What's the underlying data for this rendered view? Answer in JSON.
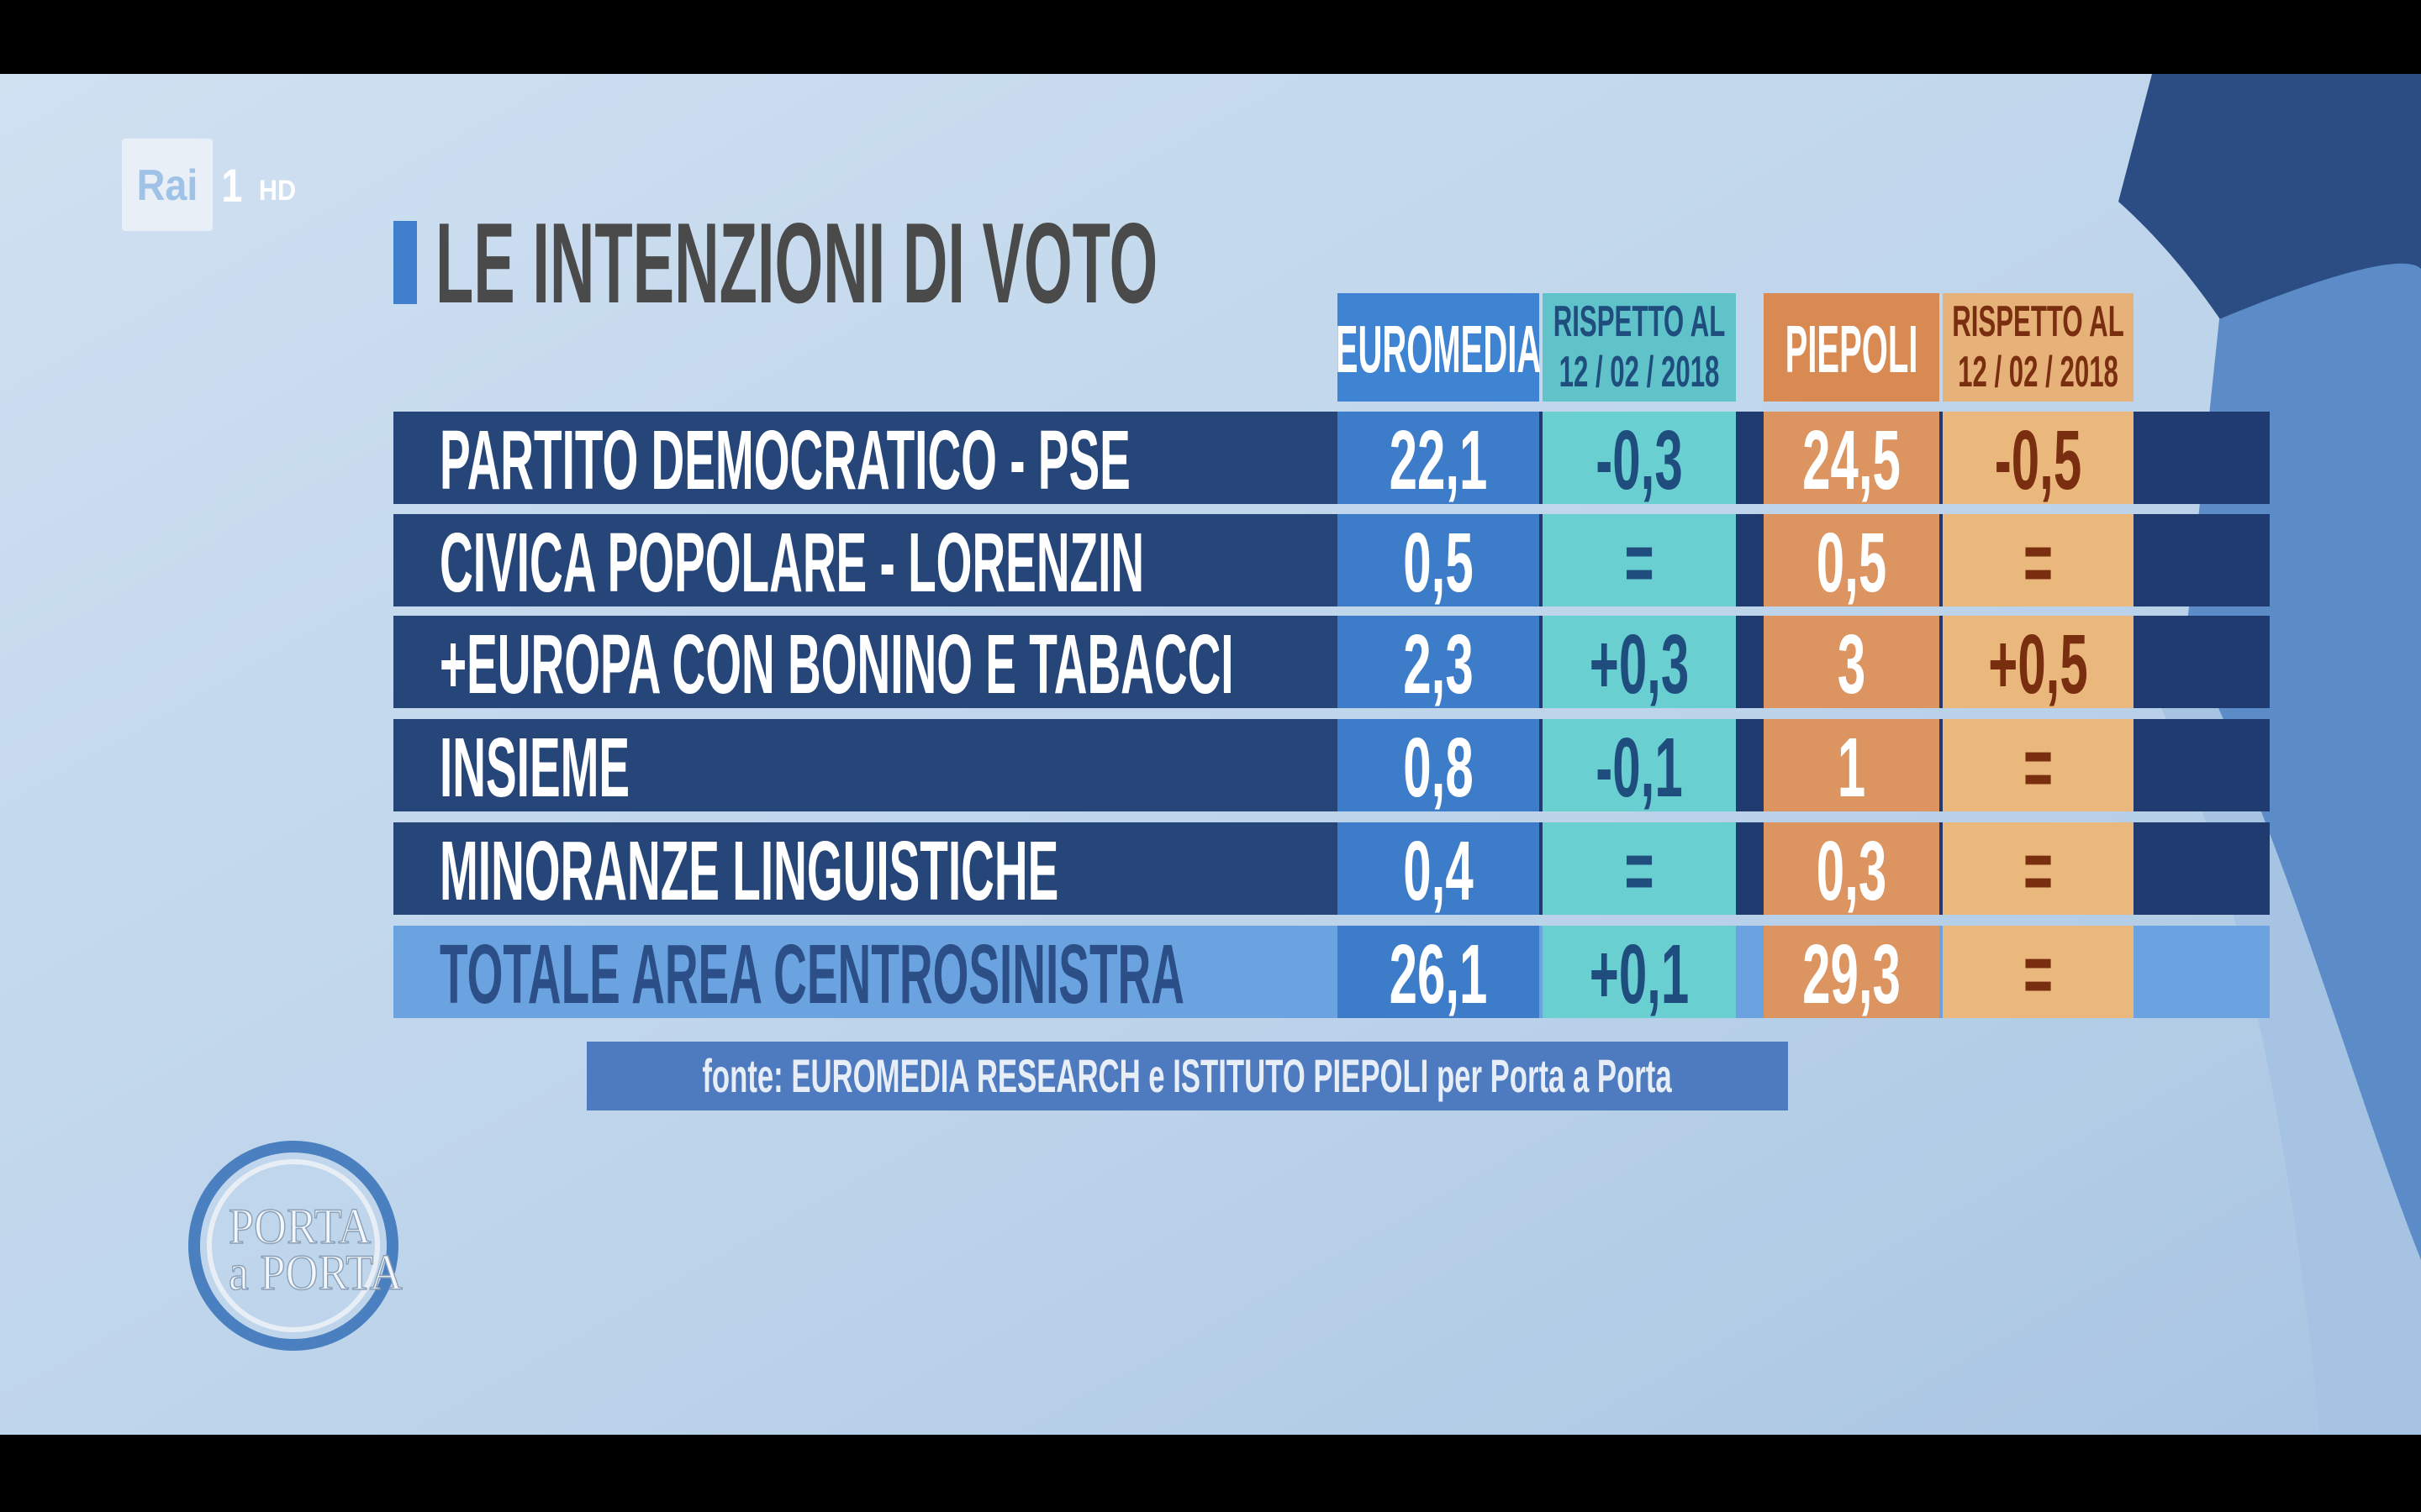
{
  "channel_logo": {
    "brand": "Rai",
    "channel": "1",
    "quality": "HD"
  },
  "title": "LE INTENZIONI DI VOTO",
  "table": {
    "headers": [
      "EUROMEDIA",
      [
        "RISPETTO AL",
        "12 / 02 / 2018"
      ],
      "PIEPOLI",
      [
        "RISPETTO AL",
        "12 / 02 / 2018"
      ]
    ],
    "rows": [
      [
        "PARTITO DEMOCRATICO - PSE",
        "22,1",
        "-0,3",
        "24,5",
        "-0,5"
      ],
      [
        "CIVICA POPOLARE - LORENZIN",
        "0,5",
        "=",
        "0,5",
        "="
      ],
      [
        "+EUROPA CON BONINO E TABACCI",
        "2,3",
        "+0,3",
        "3",
        "+0,5"
      ],
      [
        "INSIEME",
        "0,8",
        "-0,1",
        "1",
        "="
      ],
      [
        "MINORANZE LINGUISTICHE",
        "0,4",
        "=",
        "0,3",
        "="
      ]
    ],
    "total": [
      "TOTALE AREA CENTROSINISTRA",
      "26,1",
      "+0,1",
      "29,3",
      "="
    ]
  },
  "source": "fonte: EUROMEDIA RESEARCH e ISTITUTO PIEPOLI per Porta a Porta",
  "show_logo": {
    "line1": "PORTA",
    "line2": "a PORTA"
  }
}
